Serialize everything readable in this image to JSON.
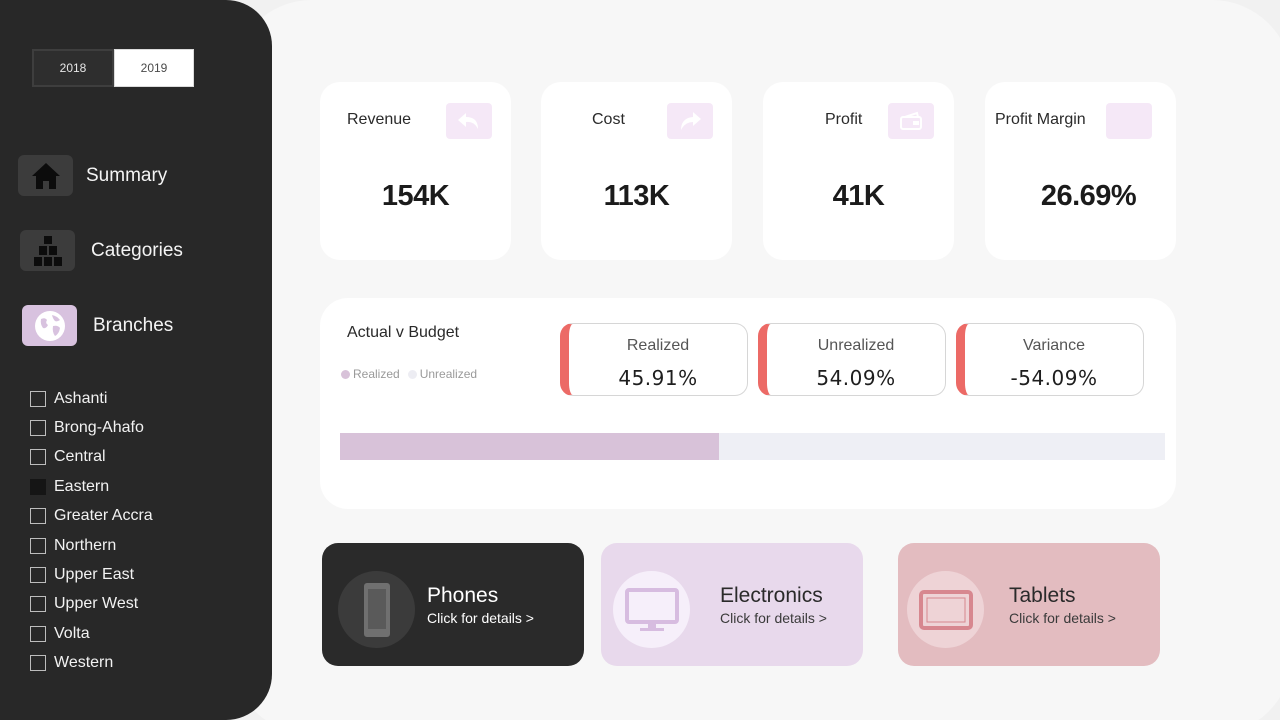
{
  "years": [
    "2018",
    "2019"
  ],
  "selected_year": "2019",
  "nav": [
    {
      "label": "Summary",
      "icon": "home-icon"
    },
    {
      "label": "Categories",
      "icon": "boxes-icon"
    },
    {
      "label": "Branches",
      "icon": "globe-icon",
      "active": true
    }
  ],
  "branches": [
    {
      "label": "Ashanti",
      "checked": false
    },
    {
      "label": "Brong-Ahafo",
      "checked": false
    },
    {
      "label": "Central",
      "checked": false
    },
    {
      "label": "Eastern",
      "checked": true
    },
    {
      "label": "Greater Accra",
      "checked": false
    },
    {
      "label": "Northern",
      "checked": false
    },
    {
      "label": "Upper East",
      "checked": false
    },
    {
      "label": "Upper West",
      "checked": false
    },
    {
      "label": "Volta",
      "checked": false
    },
    {
      "label": "Western",
      "checked": false
    }
  ],
  "kpis": [
    {
      "label": "Revenue",
      "value": "154K",
      "icon": "undo-arrow-icon"
    },
    {
      "label": "Cost",
      "value": "113K",
      "icon": "redo-arrow-icon"
    },
    {
      "label": "Profit",
      "value": "41K",
      "icon": "wallet-icon"
    },
    {
      "label": "Profit Margin",
      "value": "26.69%",
      "icon": "blank-icon"
    }
  ],
  "budget": {
    "title": "Actual v Budget",
    "legend": [
      "Realized",
      "Unrealized"
    ],
    "stats": [
      {
        "label": "Realized",
        "value": "45.91%"
      },
      {
        "label": "Unrealized",
        "value": "54.09%"
      },
      {
        "label": "Variance",
        "value": "-54.09%"
      }
    ],
    "realized_fraction": 0.4591
  },
  "categories": [
    {
      "title": "Phones",
      "sub": "Click for details >",
      "icon": "phone-icon"
    },
    {
      "title": "Electronics",
      "sub": "Click for details >",
      "icon": "monitor-icon"
    },
    {
      "title": "Tablets",
      "sub": "Click for details >",
      "icon": "tablet-icon"
    }
  ],
  "colors": {
    "sidebar": "#282828",
    "accent_lilac": "#d8c2df",
    "stat_accent": "#ec6a66",
    "phones_card": "#2a2a2a",
    "electronics_card": "#e8d9ec",
    "tablets_card": "#e3bcc0"
  }
}
